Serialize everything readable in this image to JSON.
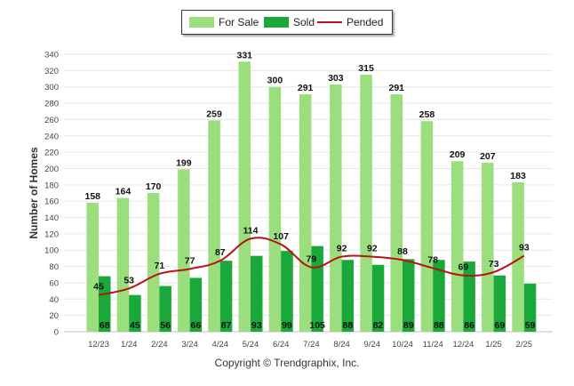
{
  "chart_data": {
    "type": "bar",
    "categories": [
      "12/23",
      "1/24",
      "2/24",
      "3/24",
      "4/24",
      "5/24",
      "6/24",
      "7/24",
      "8/24",
      "9/24",
      "10/24",
      "11/24",
      "12/24",
      "1/25",
      "2/25"
    ],
    "series": [
      {
        "name": "For Sale",
        "type": "bar",
        "color": "#9ade7d",
        "values": [
          158,
          164,
          170,
          199,
          259,
          331,
          300,
          291,
          303,
          315,
          291,
          258,
          209,
          207,
          183
        ]
      },
      {
        "name": "Sold",
        "type": "bar",
        "color": "#1aa83a",
        "values": [
          68,
          45,
          56,
          66,
          87,
          93,
          99,
          105,
          88,
          82,
          89,
          88,
          86,
          69,
          59
        ]
      },
      {
        "name": "Pended",
        "type": "line",
        "color": "#b81414",
        "values": [
          45,
          53,
          71,
          77,
          87,
          114,
          107,
          79,
          92,
          92,
          88,
          78,
          69,
          73,
          93
        ]
      }
    ],
    "ylabel": "Number of Homes",
    "xlabel": "",
    "ylim": [
      0,
      340
    ],
    "yticks": [
      0,
      20,
      40,
      60,
      80,
      100,
      120,
      140,
      160,
      180,
      200,
      220,
      240,
      260,
      280,
      300,
      320,
      340
    ],
    "grid": true,
    "legend": "top-center"
  },
  "footer": {
    "copyright": "Copyright © Trendgraphix, Inc."
  }
}
